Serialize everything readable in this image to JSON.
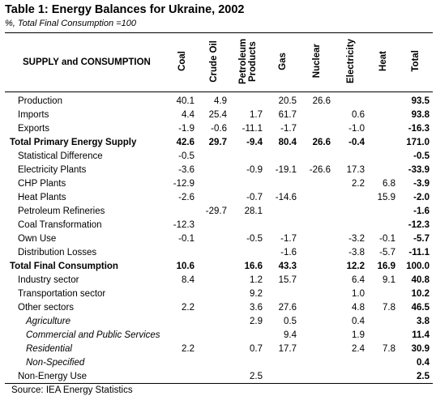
{
  "header": {
    "title": "Table 1: Energy Balances for Ukraine, 2002",
    "subtitle": "%, Total Final Consumption =100"
  },
  "table": {
    "row_header": "SUPPLY and CONSUMPTION",
    "columns": [
      "Coal",
      "Crude Oil",
      "Petroleum Products",
      "Gas",
      "Nuclear",
      "Electricity",
      "Heat",
      "Total"
    ],
    "rows": [
      {
        "label": "Production",
        "indent": 1,
        "values": [
          "40.1",
          "4.9",
          null,
          "20.5",
          "26.6",
          null,
          null,
          "93.5"
        ]
      },
      {
        "label": "Imports",
        "indent": 1,
        "values": [
          "4.4",
          "25.4",
          "1.7",
          "61.7",
          null,
          "0.6",
          null,
          "93.8"
        ]
      },
      {
        "label": "Exports",
        "indent": 1,
        "values": [
          "-1.9",
          "-0.6",
          "-11.1",
          "-1.7",
          null,
          "-1.0",
          null,
          "-16.3"
        ]
      },
      {
        "label": "Total Primary Energy Supply",
        "indent": 0,
        "emphasis": "bold",
        "values": [
          "42.6",
          "29.7",
          "-9.4",
          "80.4",
          "26.6",
          "-0.4",
          null,
          "171.0"
        ]
      },
      {
        "label": "Statistical Difference",
        "indent": 1,
        "values": [
          "-0.5",
          null,
          null,
          null,
          null,
          null,
          null,
          "-0.5"
        ]
      },
      {
        "label": "Electricity Plants",
        "indent": 1,
        "values": [
          "-3.6",
          null,
          "-0.9",
          "-19.1",
          "-26.6",
          "17.3",
          null,
          "-33.9"
        ]
      },
      {
        "label": "CHP Plants",
        "indent": 1,
        "values": [
          "-12.9",
          null,
          null,
          null,
          null,
          "2.2",
          "6.8",
          "-3.9"
        ]
      },
      {
        "label": "Heat Plants",
        "indent": 1,
        "values": [
          "-2.6",
          null,
          "-0.7",
          "-14.6",
          null,
          null,
          "15.9",
          "-2.0"
        ]
      },
      {
        "label": "Petroleum Refineries",
        "indent": 1,
        "values": [
          null,
          "-29.7",
          "28.1",
          null,
          null,
          null,
          null,
          "-1.6"
        ]
      },
      {
        "label": "Coal Transformation",
        "indent": 1,
        "values": [
          "-12.3",
          null,
          null,
          null,
          null,
          null,
          null,
          "-12.3"
        ]
      },
      {
        "label": "Own Use",
        "indent": 1,
        "values": [
          "-0.1",
          null,
          "-0.5",
          "-1.7",
          null,
          "-3.2",
          "-0.1",
          "-5.7"
        ]
      },
      {
        "label": "Distribution Losses",
        "indent": 1,
        "values": [
          null,
          null,
          null,
          "-1.6",
          null,
          "-3.8",
          "-5.7",
          "-11.1"
        ]
      },
      {
        "label": "Total Final Consumption",
        "indent": 0,
        "emphasis": "bold",
        "values": [
          "10.6",
          null,
          "16.6",
          "43.3",
          null,
          "12.2",
          "16.9",
          "100.0"
        ]
      },
      {
        "label": "Industry sector",
        "indent": 1,
        "values": [
          "8.4",
          null,
          "1.2",
          "15.7",
          null,
          "6.4",
          "9.1",
          "40.8"
        ]
      },
      {
        "label": "Transportation sector",
        "indent": 1,
        "values": [
          null,
          null,
          "9.2",
          null,
          null,
          "1.0",
          null,
          "10.2"
        ]
      },
      {
        "label": "Other sectors",
        "indent": 1,
        "values": [
          "2.2",
          null,
          "3.6",
          "27.6",
          null,
          "4.8",
          "7.8",
          "46.5"
        ]
      },
      {
        "label": "Agriculture",
        "indent": 2,
        "emphasis": "italic",
        "values": [
          null,
          null,
          "2.9",
          "0.5",
          null,
          "0.4",
          null,
          "3.8"
        ]
      },
      {
        "label": "Commercial and Public Services",
        "indent": 2,
        "emphasis": "italic",
        "values": [
          null,
          null,
          null,
          "9.4",
          null,
          "1.9",
          null,
          "11.4"
        ]
      },
      {
        "label": "Residential",
        "indent": 2,
        "emphasis": "italic",
        "values": [
          "2.2",
          null,
          "0.7",
          "17.7",
          null,
          "2.4",
          "7.8",
          "30.9"
        ]
      },
      {
        "label": "Non-Specified",
        "indent": 2,
        "emphasis": "italic",
        "values": [
          null,
          null,
          null,
          null,
          null,
          null,
          null,
          "0.4"
        ]
      },
      {
        "label": "Non-Energy Use",
        "indent": 1,
        "values": [
          null,
          null,
          "2.5",
          null,
          null,
          null,
          null,
          "2.5"
        ]
      }
    ]
  },
  "footer": {
    "source": "Source: IEA Energy Statistics"
  }
}
